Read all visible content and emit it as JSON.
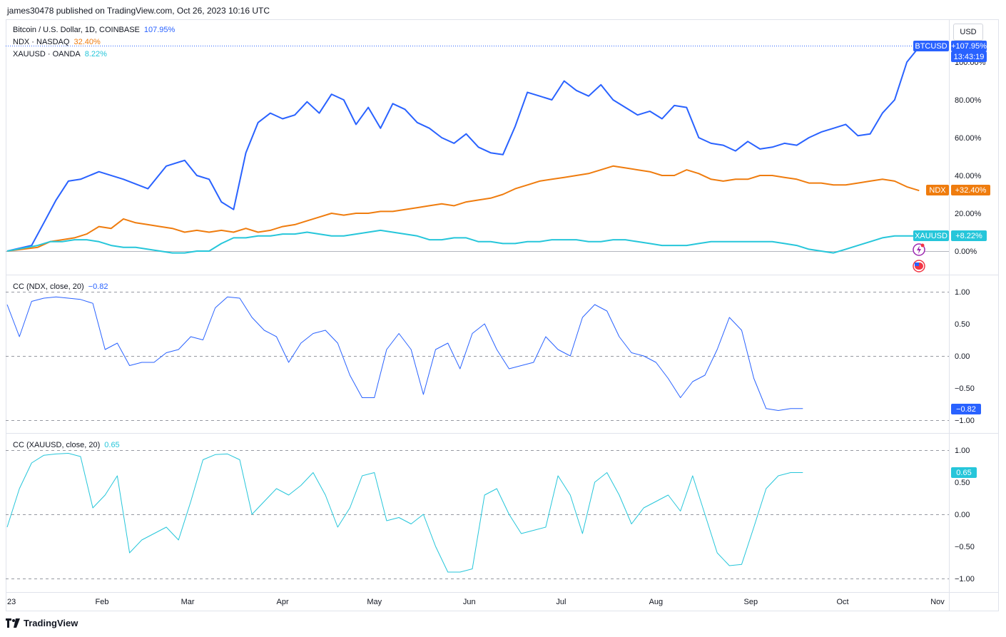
{
  "header": {
    "publish_line": "james30478 published on TradingView.com, Oct 26, 2023 10:16 UTC"
  },
  "toolbar": {
    "currency_label": "USD"
  },
  "footer": {
    "brand": "TradingView"
  },
  "legend": {
    "btc": {
      "label": "Bitcoin / U.S. Dollar, 1D, COINBASE",
      "value": "107.95%"
    },
    "ndx": {
      "label": "NDX · NASDAQ",
      "value": "32.40%"
    },
    "xau": {
      "label": "XAUUSD · OANDA",
      "value": "8.22%"
    }
  },
  "indicators": {
    "cc_ndx": {
      "label": "CC (NDX, close, 20)",
      "value": "−0.82",
      "badge": "−0.82"
    },
    "cc_xau": {
      "label": "CC (XAUUSD, close, 20)",
      "value": "0.65",
      "badge": "0.65"
    }
  },
  "badges": {
    "btc_name": "BTCUSD",
    "btc_value": "+107.95%",
    "btc_countdown": "13:43:19",
    "ndx_name": "NDX",
    "ndx_value": "+32.40%",
    "xau_name": "XAUUSD",
    "xau_value": "+8.22%"
  },
  "colors": {
    "btc": "#2962ff",
    "ndx": "#ef7c0e",
    "xau": "#26c6da",
    "cc_ndx": "#2962ff",
    "cc_xau": "#26c6da"
  },
  "chart_data": [
    {
      "type": "line",
      "panel": "price-percent",
      "x_unit": "days since 2023-01-01",
      "ylim": [
        -10,
        115
      ],
      "yticks": [
        "100.00%",
        "80.00%",
        "60.00%",
        "40.00%",
        "20.00%",
        "0.00%"
      ],
      "ytick_values": [
        100,
        80,
        60,
        40,
        20,
        0
      ],
      "series": [
        {
          "name": "BTCUSD",
          "color": "#2962ff",
          "x": [
            0,
            8,
            12,
            16,
            20,
            24,
            30,
            38,
            46,
            52,
            58,
            62,
            66,
            70,
            74,
            78,
            82,
            86,
            90,
            94,
            98,
            102,
            106,
            110,
            114,
            118,
            122,
            126,
            130,
            134,
            138,
            142,
            146,
            150,
            154,
            158,
            162,
            166,
            170,
            174,
            178,
            182,
            186,
            190,
            194,
            198,
            202,
            206,
            210,
            214,
            218,
            222,
            226,
            230,
            234,
            238,
            242,
            246,
            250,
            254,
            258,
            262,
            266,
            270,
            274,
            278,
            282,
            286,
            290,
            294,
            298
          ],
          "y": [
            0,
            3,
            15,
            27,
            37,
            38,
            42,
            38,
            33,
            45,
            48,
            40,
            38,
            26,
            22,
            52,
            68,
            73,
            70,
            72,
            79,
            73,
            83,
            80,
            67,
            76,
            65,
            78,
            75,
            68,
            65,
            60,
            57,
            62,
            55,
            52,
            51,
            66,
            84,
            82,
            80,
            90,
            85,
            82,
            88,
            80,
            76,
            72,
            74,
            70,
            77,
            76,
            60,
            57,
            56,
            53,
            58,
            54,
            55,
            57,
            56,
            60,
            63,
            65,
            67,
            61,
            62,
            73,
            80,
            100,
            108
          ]
        },
        {
          "name": "NDX",
          "color": "#ef7c0e",
          "x": [
            0,
            10,
            14,
            18,
            22,
            26,
            30,
            34,
            38,
            42,
            46,
            50,
            54,
            58,
            62,
            66,
            70,
            74,
            78,
            82,
            86,
            90,
            94,
            98,
            102,
            106,
            110,
            114,
            118,
            122,
            126,
            130,
            134,
            138,
            142,
            146,
            150,
            154,
            158,
            162,
            166,
            170,
            174,
            178,
            182,
            186,
            190,
            194,
            198,
            202,
            206,
            210,
            214,
            218,
            222,
            226,
            230,
            234,
            238,
            242,
            246,
            250,
            254,
            258,
            262,
            266,
            270,
            274,
            278,
            282,
            286,
            290,
            294,
            298
          ],
          "y": [
            0,
            2,
            5,
            6,
            7,
            9,
            13,
            12,
            17,
            15,
            14,
            13,
            12,
            10,
            11,
            10,
            11,
            10,
            12,
            10,
            11,
            13,
            14,
            16,
            18,
            20,
            19,
            20,
            20,
            21,
            21,
            22,
            23,
            24,
            25,
            24,
            26,
            27,
            28,
            30,
            33,
            35,
            37,
            38,
            39,
            40,
            41,
            43,
            45,
            44,
            43,
            42,
            40,
            40,
            43,
            41,
            38,
            37,
            38,
            38,
            40,
            40,
            39,
            38,
            36,
            36,
            35,
            35,
            36,
            37,
            38,
            37,
            34,
            32
          ]
        },
        {
          "name": "XAUUSD",
          "color": "#26c6da",
          "x": [
            0,
            10,
            14,
            18,
            22,
            26,
            30,
            34,
            38,
            42,
            46,
            50,
            54,
            58,
            62,
            66,
            70,
            74,
            78,
            82,
            86,
            90,
            94,
            98,
            102,
            106,
            110,
            114,
            118,
            122,
            126,
            130,
            134,
            138,
            142,
            146,
            150,
            154,
            158,
            162,
            166,
            170,
            174,
            178,
            182,
            186,
            190,
            194,
            198,
            202,
            206,
            210,
            214,
            218,
            222,
            226,
            230,
            234,
            238,
            242,
            246,
            250,
            254,
            258,
            262,
            266,
            270,
            274,
            278,
            282,
            286,
            290,
            294,
            298
          ],
          "y": [
            0,
            3,
            5,
            5,
            6,
            6,
            5,
            3,
            2,
            2,
            1,
            0,
            -1,
            -1,
            0,
            0,
            4,
            7,
            7,
            8,
            8,
            9,
            9,
            10,
            9,
            8,
            8,
            9,
            10,
            11,
            10,
            9,
            8,
            6,
            6,
            7,
            7,
            5,
            5,
            4,
            4,
            5,
            5,
            6,
            6,
            6,
            5,
            5,
            6,
            6,
            5,
            4,
            3,
            3,
            3,
            4,
            5,
            5,
            5,
            5,
            5,
            5,
            4,
            3,
            1,
            0,
            -1,
            1,
            3,
            5,
            7,
            8,
            8,
            8
          ]
        }
      ]
    },
    {
      "type": "line",
      "panel": "correlation-ndx",
      "ylim": [
        -1.1,
        1.1
      ],
      "yticks": [
        "1.00",
        "0.50",
        "0.00",
        "−0.50",
        "−1.00"
      ],
      "ytick_values": [
        1,
        0.5,
        0,
        -0.5,
        -1
      ],
      "series": [
        {
          "name": "CC (NDX, close, 20)",
          "color": "#2962ff",
          "x": [
            0,
            4,
            8,
            12,
            16,
            20,
            24,
            28,
            32,
            36,
            40,
            44,
            48,
            52,
            56,
            60,
            64,
            68,
            72,
            76,
            80,
            84,
            88,
            92,
            96,
            100,
            104,
            108,
            112,
            116,
            120,
            124,
            128,
            132,
            136,
            140,
            144,
            148,
            152,
            156,
            160,
            164,
            168,
            172,
            176,
            180,
            184,
            188,
            192,
            196,
            200,
            204,
            208,
            212,
            216,
            220,
            224,
            228,
            232,
            236,
            240,
            244,
            248,
            252,
            256,
            260,
            264,
            268,
            272,
            276,
            280,
            284,
            288,
            292,
            296
          ],
          "y": [
            0.8,
            0.3,
            0.85,
            0.9,
            0.92,
            0.9,
            0.88,
            0.82,
            0.1,
            0.2,
            -0.15,
            -0.1,
            -0.1,
            0.05,
            0.1,
            0.3,
            0.25,
            0.75,
            0.92,
            0.9,
            0.6,
            0.4,
            0.3,
            -0.1,
            0.2,
            0.35,
            0.4,
            0.2,
            -0.3,
            -0.65,
            -0.65,
            0.1,
            0.35,
            0.1,
            -0.6,
            0.1,
            0.2,
            -0.2,
            0.35,
            0.5,
            0.1,
            -0.2,
            -0.15,
            -0.1,
            0.3,
            0.1,
            0.0,
            0.6,
            0.8,
            0.7,
            0.3,
            0.05,
            0.0,
            -0.1,
            -0.35,
            -0.65,
            -0.4,
            -0.3,
            0.1,
            0.6,
            0.4,
            -0.35,
            -0.82,
            -0.85,
            -0.82,
            -0.82,
            -0.82,
            -0.82,
            -0.82,
            -0.82,
            -0.82,
            -0.82,
            -0.82,
            -0.82,
            -0.82
          ],
          "x_end": 260
        }
      ]
    },
    {
      "type": "line",
      "panel": "correlation-xau",
      "ylim": [
        -1.1,
        1.1
      ],
      "yticks": [
        "1.00",
        "0.50",
        "0.00",
        "−0.50",
        "−1.00"
      ],
      "ytick_values": [
        1,
        0.5,
        0,
        -0.5,
        -1
      ],
      "series": [
        {
          "name": "CC (XAUUSD, close, 20)",
          "color": "#26c6da",
          "x": [
            0,
            4,
            8,
            12,
            16,
            20,
            24,
            28,
            32,
            36,
            40,
            44,
            48,
            52,
            56,
            60,
            64,
            68,
            72,
            76,
            80,
            84,
            88,
            92,
            96,
            100,
            104,
            108,
            112,
            116,
            120,
            124,
            128,
            132,
            136,
            140,
            144,
            148,
            152,
            156,
            160,
            164,
            168,
            172,
            176,
            180,
            184,
            188,
            192,
            196,
            200,
            204,
            208,
            212,
            216,
            220,
            224,
            228,
            232,
            236,
            240,
            244,
            248,
            252,
            256,
            260
          ],
          "y": [
            -0.2,
            0.4,
            0.8,
            0.92,
            0.94,
            0.95,
            0.9,
            0.1,
            0.3,
            0.6,
            -0.6,
            -0.4,
            -0.3,
            -0.2,
            -0.4,
            0.2,
            0.85,
            0.93,
            0.94,
            0.85,
            0.0,
            0.2,
            0.4,
            0.3,
            0.45,
            0.65,
            0.3,
            -0.2,
            0.1,
            0.6,
            0.65,
            -0.1,
            -0.05,
            -0.15,
            0.0,
            -0.5,
            -0.9,
            -0.9,
            -0.85,
            0.3,
            0.4,
            0.0,
            -0.3,
            -0.25,
            -0.2,
            0.6,
            0.3,
            -0.3,
            0.5,
            0.65,
            0.3,
            -0.15,
            0.1,
            0.2,
            0.3,
            0.05,
            0.6,
            0.0,
            -0.6,
            -0.8,
            -0.78,
            -0.2,
            0.4,
            0.6,
            0.65,
            0.65
          ]
        }
      ]
    }
  ],
  "x_axis": {
    "labels": [
      "23",
      "Feb",
      "Mar",
      "Apr",
      "May",
      "Jun",
      "Jul",
      "Aug",
      "Sep",
      "Oct",
      "Nov"
    ],
    "label_days": [
      0,
      31,
      59,
      90,
      120,
      151,
      181,
      212,
      243,
      273,
      304
    ]
  }
}
